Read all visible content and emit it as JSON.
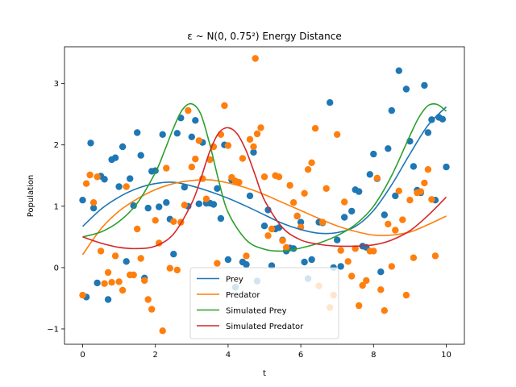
{
  "chart_data": {
    "type": "scatter+line",
    "title": "ε ~ N(0, 0.75²) Energy Distance",
    "xlabel": "t",
    "ylabel": "Population",
    "xlim": [
      -0.5,
      10.5
    ],
    "ylim": [
      -1.25,
      3.6
    ],
    "xticks": [
      0,
      2,
      4,
      6,
      8,
      10
    ],
    "yticks": [
      -1,
      0,
      1,
      2,
      3
    ],
    "grid": false,
    "legend_position": "lower-center",
    "colors": {
      "prey": "#1f77b4",
      "predator": "#ff7f0e",
      "sim_prey": "#2ca02c",
      "sim_predator": "#d62728"
    },
    "lines": [
      {
        "name": "Prey",
        "color_key": "prey",
        "x": [
          0,
          0.5,
          1,
          1.5,
          2,
          2.5,
          3,
          3.5,
          4,
          4.5,
          5,
          5.5,
          6,
          6.5,
          7,
          7.5,
          8,
          8.5,
          9,
          9.5,
          10
        ],
        "y": [
          0.67,
          0.95,
          1.15,
          1.29,
          1.37,
          1.39,
          1.33,
          1.24,
          1.13,
          1.0,
          0.86,
          0.72,
          0.62,
          0.56,
          0.57,
          0.67,
          0.93,
          1.35,
          1.85,
          2.32,
          2.62
        ]
      },
      {
        "name": "Predator",
        "color_key": "predator",
        "x": [
          0,
          0.5,
          1,
          1.5,
          2,
          2.5,
          3,
          3.5,
          4,
          4.5,
          5,
          5.5,
          6,
          6.5,
          7,
          7.5,
          8,
          8.5,
          9,
          9.5,
          10
        ],
        "y": [
          0.21,
          0.63,
          0.92,
          1.12,
          1.27,
          1.37,
          1.42,
          1.43,
          1.38,
          1.3,
          1.19,
          1.06,
          0.93,
          0.8,
          0.68,
          0.59,
          0.53,
          0.53,
          0.58,
          0.7,
          0.84
        ]
      },
      {
        "name": "Simulated Prey",
        "color_key": "sim_prey",
        "x": [
          0,
          0.5,
          1,
          1.5,
          2,
          2.25,
          2.5,
          2.75,
          3,
          3.25,
          3.5,
          3.75,
          4,
          4.5,
          5,
          5.5,
          6,
          6.5,
          7,
          7.5,
          8,
          8.5,
          9,
          9.25,
          9.5,
          9.75,
          10
        ],
        "y": [
          0.5,
          0.58,
          0.75,
          1.05,
          1.55,
          1.9,
          2.28,
          2.58,
          2.67,
          2.5,
          2.0,
          1.4,
          0.9,
          0.45,
          0.3,
          0.27,
          0.32,
          0.4,
          0.52,
          0.7,
          1.0,
          1.5,
          2.15,
          2.45,
          2.64,
          2.66,
          2.55
        ]
      },
      {
        "name": "Simulated Predator",
        "color_key": "sim_predator",
        "x": [
          0,
          0.5,
          1,
          1.5,
          2,
          2.5,
          3,
          3.25,
          3.5,
          3.75,
          4,
          4.25,
          4.5,
          4.75,
          5,
          5.5,
          6,
          6.5,
          7,
          7.5,
          8,
          8.5,
          9,
          9.5,
          10
        ],
        "y": [
          0.5,
          0.4,
          0.33,
          0.31,
          0.35,
          0.55,
          1.05,
          1.45,
          1.9,
          2.2,
          2.28,
          2.18,
          1.9,
          1.5,
          1.1,
          0.65,
          0.45,
          0.38,
          0.35,
          0.35,
          0.37,
          0.45,
          0.6,
          0.85,
          1.15
        ]
      }
    ],
    "scatter": [
      {
        "name": "prey-points",
        "color_key": "prey",
        "points": [
          [
            0,
            1.1
          ],
          [
            0.1,
            -0.48
          ],
          [
            0.22,
            2.03
          ],
          [
            0.3,
            0.97
          ],
          [
            0.4,
            -0.25
          ],
          [
            0.5,
            1.49
          ],
          [
            0.6,
            1.44
          ],
          [
            0.7,
            -0.52
          ],
          [
            0.8,
            1.76
          ],
          [
            0.9,
            1.79
          ],
          [
            1.0,
            1.32
          ],
          [
            1.1,
            1.97
          ],
          [
            1.2,
            0.1
          ],
          [
            1.3,
            1.45
          ],
          [
            1.4,
            1.01
          ],
          [
            1.5,
            2.2
          ],
          [
            1.6,
            1.83
          ],
          [
            1.7,
            -0.17
          ],
          [
            1.8,
            0.97
          ],
          [
            1.9,
            1.57
          ],
          [
            2.0,
            1.58
          ],
          [
            2.1,
            0.99
          ],
          [
            2.2,
            2.17
          ],
          [
            2.3,
            1.06
          ],
          [
            2.4,
            0.79
          ],
          [
            2.5,
            0.22
          ],
          [
            2.6,
            2.19
          ],
          [
            2.7,
            2.44
          ],
          [
            2.8,
            1.31
          ],
          [
            2.9,
            1.0
          ],
          [
            3.0,
            2.13
          ],
          [
            3.1,
            2.4
          ],
          [
            3.2,
            1.04
          ],
          [
            3.3,
            2.04
          ],
          [
            3.4,
            1.05
          ],
          [
            3.5,
            1.05
          ],
          [
            3.6,
            1.03
          ],
          [
            3.7,
            1.29
          ],
          [
            3.8,
            0.8
          ],
          [
            3.9,
            2.0
          ],
          [
            4.0,
            0.13
          ],
          [
            4.1,
            1.43
          ],
          [
            4.2,
            -0.32
          ],
          [
            4.4,
            0.09
          ],
          [
            4.5,
            0.05
          ],
          [
            4.6,
            1.17
          ],
          [
            4.7,
            1.88
          ],
          [
            4.8,
            -0.22
          ],
          [
            5.0,
            0.68
          ],
          [
            5.1,
            0.94
          ],
          [
            5.2,
            0.03
          ],
          [
            5.3,
            0.63
          ],
          [
            5.4,
            0.65
          ],
          [
            5.5,
            0.45
          ],
          [
            5.6,
            0.27
          ],
          [
            5.7,
            0.32
          ],
          [
            5.8,
            0.31
          ],
          [
            5.9,
            0.84
          ],
          [
            6.0,
            0.74
          ],
          [
            6.1,
            0.09
          ],
          [
            6.2,
            -0.18
          ],
          [
            6.3,
            0.13
          ],
          [
            6.5,
            0.74
          ],
          [
            6.6,
            0.73
          ],
          [
            6.8,
            2.69
          ],
          [
            6.9,
            0.0
          ],
          [
            7.0,
            0.45
          ],
          [
            7.1,
            0.02
          ],
          [
            7.2,
            0.82
          ],
          [
            7.4,
            0.92
          ],
          [
            7.5,
            1.27
          ],
          [
            7.6,
            1.24
          ],
          [
            7.7,
            0.35
          ],
          [
            7.8,
            0.33
          ],
          [
            7.9,
            1.52
          ],
          [
            8.0,
            1.85
          ],
          [
            8.1,
            1.45
          ],
          [
            8.2,
            -0.07
          ],
          [
            8.3,
            0.86
          ],
          [
            8.4,
            1.94
          ],
          [
            8.5,
            2.56
          ],
          [
            8.6,
            1.17
          ],
          [
            8.7,
            3.21
          ],
          [
            8.9,
            2.91
          ],
          [
            9.0,
            2.06
          ],
          [
            9.1,
            1.65
          ],
          [
            9.2,
            1.26
          ],
          [
            9.3,
            1.22
          ],
          [
            9.4,
            2.97
          ],
          [
            9.5,
            2.2
          ],
          [
            9.6,
            2.41
          ],
          [
            9.7,
            1.1
          ],
          [
            9.8,
            2.45
          ],
          [
            9.9,
            2.42
          ],
          [
            10.0,
            1.64
          ]
        ]
      },
      {
        "name": "predator-points",
        "color_key": "predator",
        "points": [
          [
            0,
            -0.45
          ],
          [
            0.1,
            1.37
          ],
          [
            0.2,
            1.51
          ],
          [
            0.3,
            1.06
          ],
          [
            0.4,
            1.48
          ],
          [
            0.5,
            0.27
          ],
          [
            0.6,
            -0.26
          ],
          [
            0.7,
            -0.08
          ],
          [
            0.8,
            -0.24
          ],
          [
            0.9,
            0.19
          ],
          [
            1.0,
            -0.23
          ],
          [
            1.1,
            -0.37
          ],
          [
            1.2,
            1.32
          ],
          [
            1.3,
            -0.12
          ],
          [
            1.4,
            -0.12
          ],
          [
            1.5,
            0.63
          ],
          [
            1.6,
            0.15
          ],
          [
            1.7,
            -0.21
          ],
          [
            1.8,
            -0.52
          ],
          [
            1.9,
            -0.68
          ],
          [
            2.0,
            0.77
          ],
          [
            2.1,
            0.4
          ],
          [
            2.2,
            -1.03
          ],
          [
            2.3,
            1.62
          ],
          [
            2.4,
            -0.01
          ],
          [
            2.5,
            0.75
          ],
          [
            2.6,
            -0.04
          ],
          [
            2.7,
            0.74
          ],
          [
            2.8,
            1.02
          ],
          [
            2.9,
            2.56
          ],
          [
            3.0,
            1.64
          ],
          [
            3.1,
            1.77
          ],
          [
            3.2,
            2.07
          ],
          [
            3.3,
            1.45
          ],
          [
            3.4,
            1.12
          ],
          [
            3.5,
            1.76
          ],
          [
            3.6,
            1.97
          ],
          [
            3.7,
            0.07
          ],
          [
            3.8,
            2.17
          ],
          [
            3.9,
            2.64
          ],
          [
            4.0,
            1.99
          ],
          [
            4.1,
            1.47
          ],
          [
            4.2,
            1.41
          ],
          [
            4.3,
            1.39
          ],
          [
            4.4,
            1.78
          ],
          [
            4.5,
            0.19
          ],
          [
            4.6,
            2.09
          ],
          [
            4.7,
            1.97
          ],
          [
            4.75,
            3.41
          ],
          [
            4.8,
            2.18
          ],
          [
            4.9,
            2.28
          ],
          [
            5.0,
            1.48
          ],
          [
            5.1,
            0.52
          ],
          [
            5.2,
            0.63
          ],
          [
            5.3,
            1.5
          ],
          [
            5.4,
            1.48
          ],
          [
            5.5,
            0.44
          ],
          [
            5.6,
            0.33
          ],
          [
            5.7,
            1.34
          ],
          [
            5.8,
            1.06
          ],
          [
            5.9,
            0.84
          ],
          [
            6.0,
            0.66
          ],
          [
            6.1,
            1.21
          ],
          [
            6.2,
            1.6
          ],
          [
            6.3,
            1.71
          ],
          [
            6.4,
            2.27
          ],
          [
            6.5,
            -0.3
          ],
          [
            6.6,
            0.74
          ],
          [
            6.7,
            1.29
          ],
          [
            6.8,
            -0.65
          ],
          [
            6.9,
            -0.45
          ],
          [
            7.0,
            2.17
          ],
          [
            7.1,
            0.28
          ],
          [
            7.2,
            1.07
          ],
          [
            7.3,
            0.1
          ],
          [
            7.4,
            -0.14
          ],
          [
            7.5,
            0.31
          ],
          [
            7.6,
            -0.62
          ],
          [
            7.7,
            -0.29
          ],
          [
            7.8,
            -0.21
          ],
          [
            7.9,
            0.27
          ],
          [
            8.0,
            0.27
          ],
          [
            8.1,
            1.46
          ],
          [
            8.2,
            -0.36
          ],
          [
            8.3,
            -0.7
          ],
          [
            8.4,
            0.71
          ],
          [
            8.5,
            0.02
          ],
          [
            8.6,
            0.61
          ],
          [
            8.7,
            1.25
          ],
          [
            8.8,
            0.78
          ],
          [
            8.9,
            -0.45
          ],
          [
            9.0,
            1.1
          ],
          [
            9.1,
            0.16
          ],
          [
            9.2,
            1.22
          ],
          [
            9.3,
            1.24
          ],
          [
            9.4,
            1.38
          ],
          [
            9.5,
            1.6
          ],
          [
            9.6,
            1.11
          ],
          [
            9.7,
            0.19
          ]
        ]
      }
    ],
    "legend": [
      {
        "label": "Prey",
        "color_key": "prey"
      },
      {
        "label": "Predator",
        "color_key": "predator"
      },
      {
        "label": "Simulated Prey",
        "color_key": "sim_prey"
      },
      {
        "label": "Simulated Predator",
        "color_key": "sim_predator"
      }
    ]
  }
}
